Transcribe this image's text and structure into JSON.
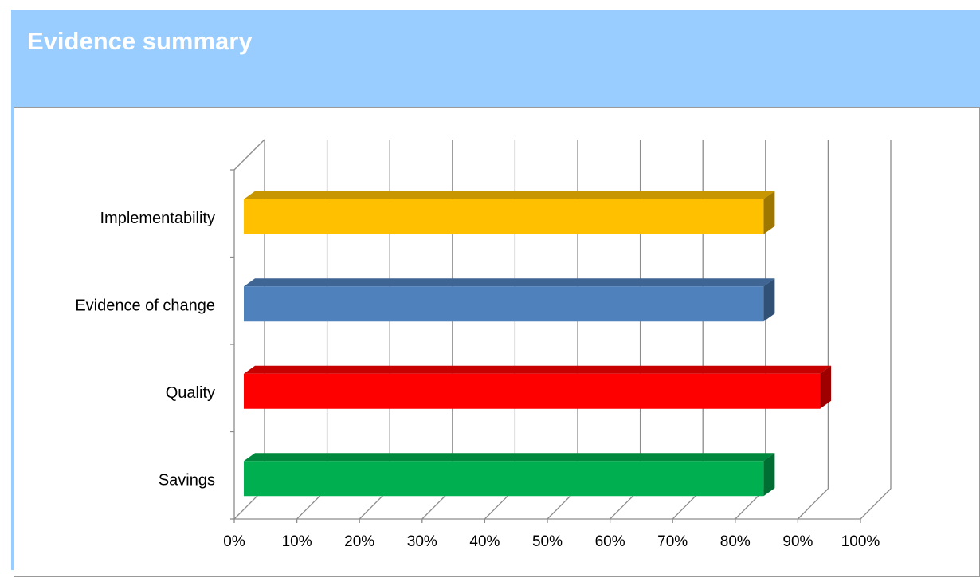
{
  "slide": {
    "title": "Evidence summary",
    "background": "#99ccff"
  },
  "chart_data": {
    "type": "bar",
    "orientation": "horizontal",
    "style": "3d",
    "categories": [
      "Savings",
      "Quality",
      "Evidence of change",
      "Implementability"
    ],
    "values": [
      83,
      92,
      83,
      83
    ],
    "colors": [
      "#00b050",
      "#ff0000",
      "#4f81bd",
      "#ffc000"
    ],
    "xlim": [
      0,
      100
    ],
    "x_ticks": [
      "0%",
      "10%",
      "20%",
      "30%",
      "40%",
      "50%",
      "60%",
      "70%",
      "80%",
      "90%",
      "100%"
    ],
    "grid": true,
    "legend": "none",
    "title": "",
    "xlabel": "",
    "ylabel": ""
  }
}
